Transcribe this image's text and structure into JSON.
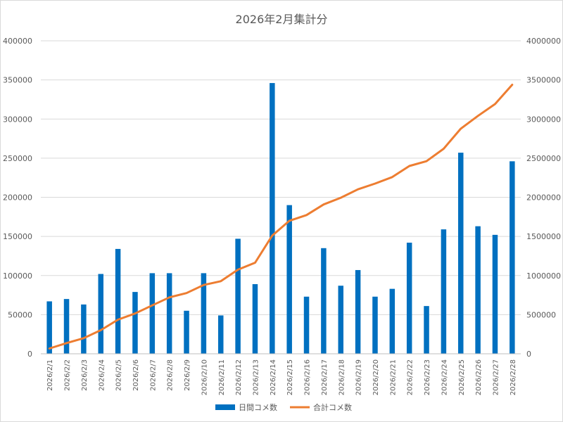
{
  "chart_data": {
    "type": "bar",
    "title": "2026年2月集計分",
    "categories": [
      "2026/2/1",
      "2026/2/2",
      "2026/2/3",
      "2026/2/4",
      "2026/2/5",
      "2026/2/6",
      "2026/2/7",
      "2026/2/8",
      "2026/2/9",
      "2026/2/10",
      "2026/2/11",
      "2026/2/12",
      "2026/2/13",
      "2026/2/14",
      "2026/2/15",
      "2026/2/16",
      "2026/2/17",
      "2026/2/18",
      "2026/2/19",
      "2026/2/20",
      "2026/2/21",
      "2026/2/22",
      "2026/2/23",
      "2026/2/24",
      "2026/2/25",
      "2026/2/26",
      "2026/2/27",
      "2026/2/28"
    ],
    "series": [
      {
        "name": "日間コメ数",
        "type": "bar",
        "axis": "left",
        "color": "#0070c0",
        "values": [
          67000,
          70000,
          63000,
          102000,
          134000,
          79000,
          103000,
          103000,
          55000,
          103000,
          49000,
          147000,
          89000,
          346000,
          190000,
          73000,
          135000,
          87000,
          107000,
          73000,
          83000,
          142000,
          61000,
          159000,
          257000,
          163000,
          152000,
          246000
        ]
      },
      {
        "name": "合計コメ数",
        "type": "line",
        "axis": "right",
        "color": "#ed7d31",
        "values": [
          67000,
          137000,
          200000,
          302000,
          436000,
          515000,
          618000,
          721000,
          776000,
          879000,
          928000,
          1075000,
          1164000,
          1510000,
          1700000,
          1773000,
          1908000,
          1995000,
          2102000,
          2175000,
          2258000,
          2400000,
          2461000,
          2620000,
          2877000,
          3040000,
          3192000,
          3438000
        ]
      }
    ],
    "yticks_left": [
      "0",
      "50000",
      "100000",
      "150000",
      "200000",
      "250000",
      "300000",
      "350000",
      "400000"
    ],
    "yticks_right": [
      "0",
      "500000",
      "1000000",
      "1500000",
      "2000000",
      "2500000",
      "3000000",
      "3500000",
      "4000000"
    ],
    "ylim_left": [
      0,
      400000
    ],
    "ylim_right": [
      0,
      4000000
    ],
    "grid": true,
    "legend_position": "bottom"
  }
}
